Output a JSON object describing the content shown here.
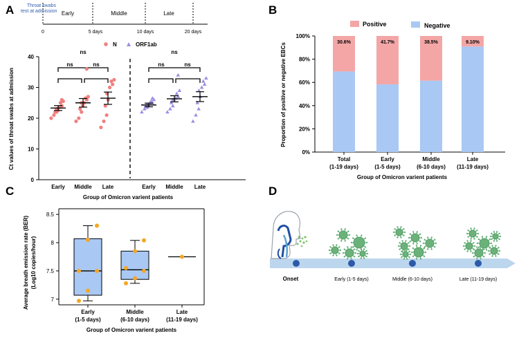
{
  "colors": {
    "pink": "#f08080",
    "purple": "#9b8fe0",
    "positive": "#f4a6a6",
    "negative": "#a9c8f3",
    "box": "#a9c8f3",
    "dot": "#f5a623",
    "timeline": "#bcd6ee",
    "timelineDot": "#2d5aa8",
    "virus": "#6ab27a",
    "line": "#000000"
  },
  "panel_labels": {
    "a": "A",
    "b": "B",
    "c": "C",
    "d": "D"
  },
  "panelA": {
    "timeline": {
      "note_line1": "Throat swabs",
      "note_line2": "test at admission",
      "ticks": [
        "0",
        "5 days",
        "10 days",
        "20 days"
      ],
      "phases": [
        "Early",
        "Middle",
        "Late"
      ]
    },
    "legend": {
      "n": "N",
      "orf": "ORF1ab"
    },
    "ns": "ns",
    "ylabel": "Ct values of throat swabs at admission",
    "xlabel": "Group of Omicron varient patients",
    "groups": [
      "Early",
      "Middle",
      "Late",
      "Early",
      "Middle",
      "Late"
    ],
    "yticks": [
      "0",
      "10",
      "20",
      "30",
      "40"
    ]
  },
  "chart_data": [
    {
      "type": "scatter",
      "title": "",
      "ylabel": "Ct values of throat swabs at admission",
      "xlabel": "Group of Omicron varient patients",
      "ylim": [
        0,
        40
      ],
      "series": [
        {
          "name": "N",
          "group": "Early",
          "values": [
            20,
            21,
            22,
            22,
            22.5,
            23,
            23.5,
            24,
            25,
            25.5,
            26
          ],
          "mean": 23.3,
          "sem": 0.8
        },
        {
          "name": "N",
          "group": "Middle",
          "values": [
            19,
            20,
            22,
            23,
            24,
            25,
            25,
            26,
            26.5,
            27,
            36
          ],
          "mean": 25.0,
          "sem": 1.4
        },
        {
          "name": "N",
          "group": "Late",
          "values": [
            17,
            19,
            21,
            24,
            26,
            28,
            30,
            31,
            32,
            32.5
          ],
          "mean": 26.5,
          "sem": 2.0
        },
        {
          "name": "ORF1ab",
          "group": "Early",
          "values": [
            22,
            23,
            23.5,
            24,
            24,
            24.5,
            25,
            25,
            25.5,
            26,
            26.5
          ],
          "mean": 24.3,
          "sem": 0.6
        },
        {
          "name": "ORF1ab",
          "group": "Middle",
          "values": [
            22,
            23,
            24,
            25,
            26,
            26,
            26.5,
            27,
            28,
            29,
            34
          ],
          "mean": 26.3,
          "sem": 1.0
        },
        {
          "name": "ORF1ab",
          "group": "Late",
          "values": [
            19,
            21,
            23,
            25,
            27,
            29,
            30,
            31,
            32,
            33
          ],
          "mean": 27.0,
          "sem": 1.6
        }
      ],
      "comparisons": [
        "Early vs Middle: ns",
        "Middle vs Late: ns",
        "Early vs Late: ns"
      ]
    },
    {
      "type": "bar",
      "stacked": true,
      "categories": [
        "Total (1-19 days)",
        "Early (1-5 days)",
        "Middle (6-10 days)",
        "Late (11-19 days)"
      ],
      "series": [
        {
          "name": "Negative",
          "values": [
            69.4,
            58.3,
            61.5,
            90.9
          ]
        },
        {
          "name": "Positive",
          "values": [
            30.6,
            41.7,
            38.5,
            9.1
          ]
        }
      ],
      "ylabel": "Proportion of positive or negative EBCs",
      "xlabel": "Group of Omicron varient patients",
      "ylim": [
        0,
        100
      ]
    },
    {
      "type": "box",
      "categories": [
        "Early (1-5 days)",
        "Middle (6-10 days)",
        "Late (11-19 days)"
      ],
      "boxes": [
        {
          "min": 6.97,
          "q1": 7.07,
          "median": 7.5,
          "q3": 8.07,
          "max": 8.3,
          "points": [
            6.97,
            7.15,
            7.5,
            7.5,
            8.05,
            8.3
          ]
        },
        {
          "min": 7.28,
          "q1": 7.35,
          "median": 7.52,
          "q3": 7.85,
          "max": 8.04,
          "points": [
            7.28,
            7.37,
            7.5,
            7.55,
            7.85,
            8.04
          ]
        },
        {
          "min": 7.75,
          "q1": 7.75,
          "median": 7.75,
          "q3": 7.75,
          "max": 7.75,
          "points": [
            7.75
          ]
        }
      ],
      "ylabel": "Average breath emission rate (BER) (Log10 copies/hour)",
      "xlabel": "Group of Omicron varient patients",
      "ylim": [
        6.9,
        8.6
      ]
    }
  ],
  "panelB": {
    "legend": {
      "positive": "Positive",
      "negative": "Negative"
    },
    "ylabel": "Proportion of positive or negative EBCs",
    "xlabel": "Group of Omicron varient patients",
    "yticks": [
      "0%",
      "20%",
      "40%",
      "60%",
      "80%",
      "100%"
    ],
    "cat_line1": [
      "Total",
      "Early",
      "Middle",
      "Late"
    ],
    "cat_line2": [
      "(1-19 days)",
      "(1-5 days)",
      "(6-10 days)",
      "(11-19 days)"
    ],
    "pct_labels": [
      "30.6%",
      "41.7%",
      "38.5%",
      "9.10%"
    ]
  },
  "panelC": {
    "ylabel_line1": "Average breath emission rate (BER)",
    "ylabel_line2": "(Log10  copies/hour)",
    "xlabel": "Group of Omicron varient patients",
    "yticks": [
      "7",
      "7.5",
      "8",
      "8.5"
    ],
    "cat_line1": [
      "Early",
      "Middle",
      "Late"
    ],
    "cat_line2": [
      "(1-5 days)",
      "(6-10 days)",
      "(11-19 days)"
    ]
  },
  "panelD": {
    "stages": [
      "Onset",
      "Early (1-5 days)",
      "Middle (6-10 days)",
      "Late (11-19 days)"
    ]
  }
}
